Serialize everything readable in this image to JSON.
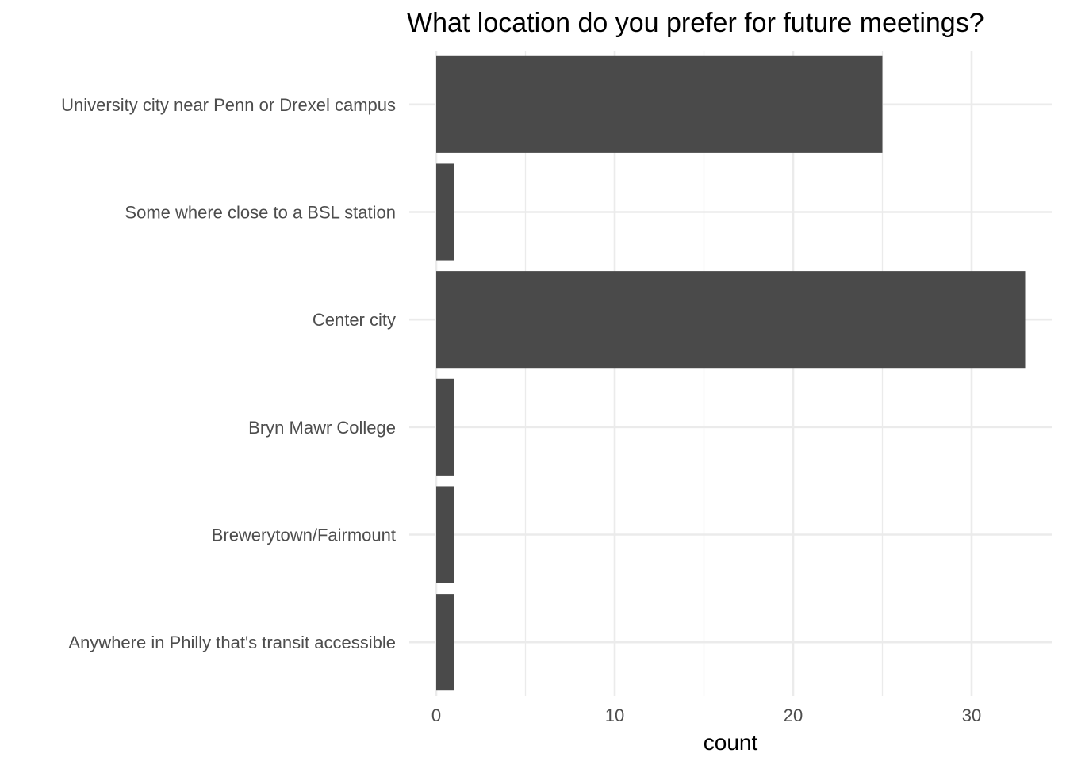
{
  "chart_data": {
    "type": "bar",
    "orientation": "horizontal",
    "title": "What location do you prefer for future meetings?",
    "xlabel": "count",
    "ylabel": "",
    "categories": [
      "University city near Penn or Drexel campus",
      "Some where close to a BSL station",
      "Center city",
      "Bryn Mawr College",
      "Brewerytown/Fairmount",
      "Anywhere in Philly that's transit accessible"
    ],
    "values": [
      25,
      1,
      33,
      1,
      1,
      1
    ],
    "xlim": [
      0,
      34.5
    ],
    "xticks": [
      0,
      10,
      20,
      30
    ],
    "xtick_labels": [
      "0",
      "10",
      "20",
      "30"
    ],
    "grid": true,
    "legend": "none",
    "bar_color": "#4a4a4a"
  }
}
